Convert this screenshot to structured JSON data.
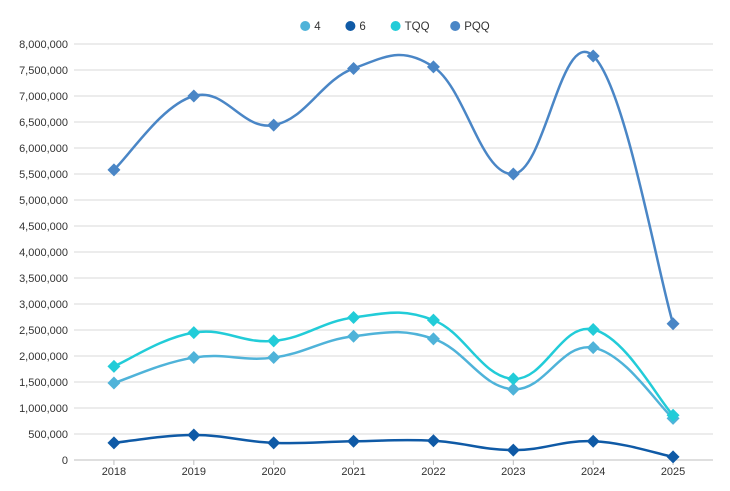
{
  "chart_data": {
    "type": "line",
    "title": "",
    "xlabel": "",
    "ylabel": "",
    "categories": [
      "2018",
      "2019",
      "2020",
      "2021",
      "2022",
      "2023",
      "2024",
      "2025"
    ],
    "ylim": [
      0,
      8000000
    ],
    "ytick_step": 500000,
    "grid": true,
    "legend_position": "top-center",
    "smooth": true,
    "marker": "diamond",
    "series": [
      {
        "name": "4",
        "color": "#4fb3d9",
        "values": [
          1480000,
          1970000,
          1970000,
          2380000,
          2330000,
          1360000,
          2160000,
          800000
        ]
      },
      {
        "name": "6",
        "color": "#0f5aa6",
        "values": [
          330000,
          480000,
          330000,
          360000,
          370000,
          190000,
          360000,
          60000
        ]
      },
      {
        "name": "TQQ",
        "color": "#22ccd8",
        "values": [
          1800000,
          2450000,
          2290000,
          2740000,
          2690000,
          1560000,
          2510000,
          860000
        ]
      },
      {
        "name": "PQQ",
        "color": "#4a86c6",
        "values": [
          5580000,
          7000000,
          6440000,
          7530000,
          7560000,
          5500000,
          7770000,
          2620000
        ]
      }
    ]
  }
}
